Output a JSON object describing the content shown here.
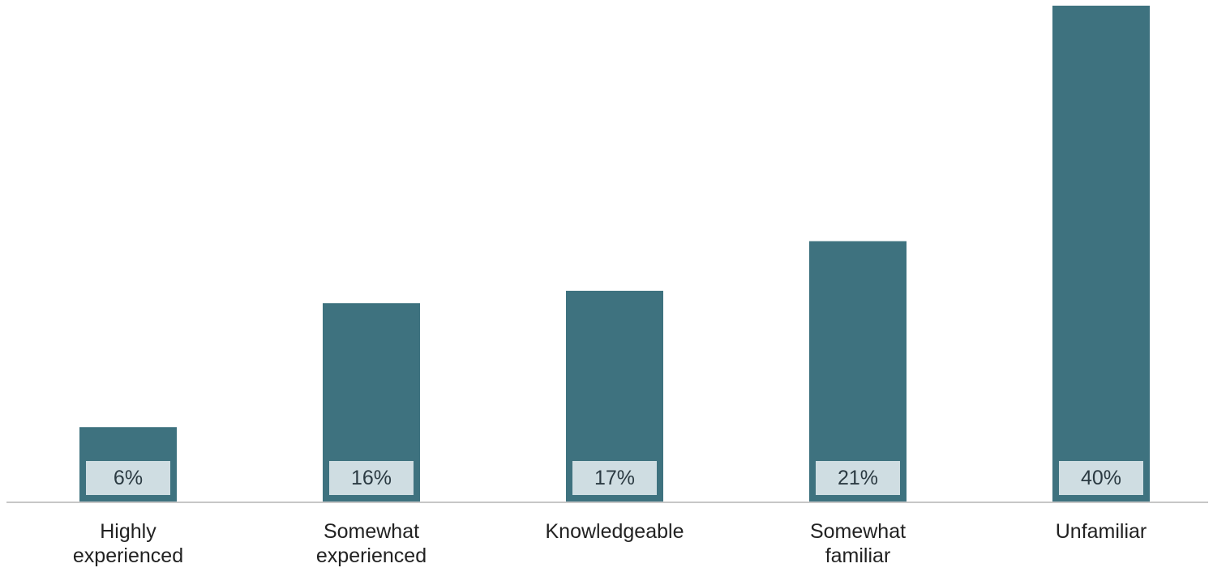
{
  "colors": {
    "bar": "#3e727f",
    "label_box": "#cfdde2",
    "axis_line": "#c7c7c7"
  },
  "chart_data": {
    "type": "bar",
    "categories": [
      [
        "Highly",
        "experienced"
      ],
      [
        "Somewhat",
        "experienced"
      ],
      [
        "Knowledgeable"
      ],
      [
        "Somewhat",
        "familiar"
      ],
      [
        "Unfamiliar"
      ]
    ],
    "values": [
      6,
      16,
      17,
      21,
      40
    ],
    "value_labels": [
      "6%",
      "16%",
      "17%",
      "21%",
      "40%"
    ],
    "unit": "%",
    "ylim": [
      0,
      40
    ],
    "grid": false,
    "legend": "none"
  }
}
